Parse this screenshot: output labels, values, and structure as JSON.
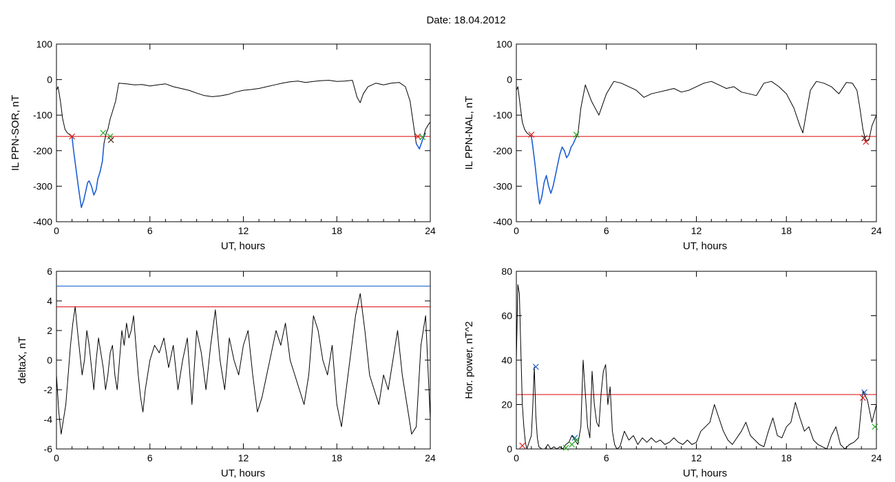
{
  "figure": {
    "title": "Date:  18.04.2012"
  },
  "colors": {
    "trace": "#000000",
    "threshold": "#dd0000",
    "upper": "#1060cc",
    "highlight": "#1c5fd6",
    "mark_red": "#dd2020",
    "mark_green": "#22aa22",
    "mark_blue": "#2060cc",
    "mark_dark": "#552222"
  },
  "chart_data": [
    {
      "id": "p1",
      "type": "line",
      "xlabel": "UT, hours",
      "ylabel": "IL PPN-SOR, nT",
      "xlim": [
        0,
        24
      ],
      "ylim": [
        -400,
        100
      ],
      "xticks": [
        0,
        6,
        12,
        18,
        24
      ],
      "yticks": [
        -400,
        -300,
        -200,
        -100,
        0,
        100
      ],
      "grid": false,
      "series": [
        {
          "x": [
            0,
            0.1,
            0.25,
            0.4,
            0.55,
            0.7,
            0.85,
            1.0,
            1.1,
            1.25,
            1.4,
            1.5,
            1.6,
            1.75,
            1.9,
            2.0,
            2.1,
            2.25,
            2.4,
            2.55,
            2.65,
            2.8,
            2.95,
            3.05,
            3.2,
            3.3,
            3.45,
            3.6,
            3.8,
            4.0,
            4.5,
            5.0,
            5.5,
            6.0,
            6.5,
            7.0,
            7.5,
            8.0,
            8.5,
            9.0,
            9.5,
            10.0,
            10.5,
            11.0,
            11.5,
            12.0,
            12.5,
            13.0,
            13.5,
            14.0,
            14.5,
            15.0,
            15.5,
            16.0,
            16.5,
            17.0,
            17.5,
            18.0,
            18.5,
            19.0,
            19.3,
            19.5,
            19.7,
            20.0,
            20.5,
            21.0,
            21.5,
            22.0,
            22.4,
            22.7,
            22.9,
            23.1,
            23.3,
            23.5,
            23.7,
            23.9,
            24.0
          ],
          "y": [
            -30,
            -20,
            -60,
            -110,
            -140,
            -150,
            -155,
            -160,
            -200,
            -250,
            -300,
            -330,
            -360,
            -340,
            -310,
            -290,
            -285,
            -300,
            -325,
            -310,
            -280,
            -260,
            -230,
            -180,
            -150,
            -140,
            -110,
            -90,
            -60,
            -10,
            -12,
            -15,
            -14,
            -18,
            -15,
            -12,
            -20,
            -25,
            -30,
            -38,
            -45,
            -48,
            -46,
            -42,
            -35,
            -30,
            -28,
            -25,
            -20,
            -15,
            -10,
            -6,
            -4,
            -8,
            -5,
            -3,
            -2,
            -5,
            -4,
            -2,
            -50,
            -65,
            -40,
            -20,
            -10,
            -15,
            -10,
            -8,
            -20,
            -60,
            -120,
            -180,
            -195,
            -170,
            -140,
            -125,
            -120
          ]
        },
        {
          "x": [
            1.0,
            1.1,
            1.25,
            1.4,
            1.5,
            1.6,
            1.75,
            1.9,
            2.0,
            2.1,
            2.25,
            2.4,
            2.55,
            2.65,
            2.8,
            2.95,
            3.05
          ],
          "y": [
            -160,
            -200,
            -250,
            -300,
            -330,
            -360,
            -340,
            -310,
            -290,
            -285,
            -300,
            -325,
            -310,
            -280,
            -260,
            -230,
            -180
          ]
        },
        {
          "x": [
            23.1,
            23.3,
            23.5,
            23.7
          ],
          "y": [
            -180,
            -195,
            -170,
            -150
          ]
        }
      ],
      "threshold": {
        "value": -160
      },
      "markers": [
        {
          "x": 1.0,
          "y": -160,
          "color": "red"
        },
        {
          "x": 3.0,
          "y": -150,
          "color": "green"
        },
        {
          "x": 3.45,
          "y": -160,
          "color": "green"
        },
        {
          "x": 3.5,
          "y": -170,
          "color": "dark"
        },
        {
          "x": 23.2,
          "y": -160,
          "color": "red"
        },
        {
          "x": 23.5,
          "y": -162,
          "color": "green"
        }
      ]
    },
    {
      "id": "p2",
      "type": "line",
      "xlabel": "UT, hours",
      "ylabel": "IL PPN-NAL, nT",
      "xlim": [
        0,
        24
      ],
      "ylim": [
        -400,
        100
      ],
      "xticks": [
        0,
        6,
        12,
        18,
        24
      ],
      "yticks": [
        -400,
        -300,
        -200,
        -100,
        0,
        100
      ],
      "grid": false,
      "series": [
        {
          "x": [
            0,
            0.1,
            0.25,
            0.4,
            0.55,
            0.7,
            0.85,
            1.0,
            1.1,
            1.25,
            1.4,
            1.55,
            1.7,
            1.85,
            2.0,
            2.15,
            2.3,
            2.45,
            2.6,
            2.75,
            2.9,
            3.05,
            3.2,
            3.35,
            3.5,
            3.65,
            3.8,
            3.95,
            4.1,
            4.3,
            4.6,
            5.0,
            5.5,
            6.0,
            6.5,
            7.0,
            7.5,
            8.0,
            8.5,
            9.0,
            9.5,
            10.0,
            10.5,
            11.0,
            11.5,
            12.0,
            12.5,
            13.0,
            13.5,
            14.0,
            14.5,
            15.0,
            15.5,
            16.0,
            16.5,
            17.0,
            17.5,
            18.0,
            18.5,
            18.9,
            19.1,
            19.3,
            19.6,
            20.0,
            20.5,
            21.0,
            21.5,
            22.0,
            22.4,
            22.7,
            22.9,
            23.1,
            23.3,
            23.5,
            23.7,
            23.9,
            24.0
          ],
          "y": [
            -30,
            -20,
            -70,
            -120,
            -140,
            -150,
            -155,
            -160,
            -190,
            -240,
            -300,
            -350,
            -330,
            -290,
            -270,
            -300,
            -320,
            -300,
            -270,
            -240,
            -210,
            -190,
            -200,
            -220,
            -210,
            -190,
            -180,
            -165,
            -155,
            -80,
            -15,
            -60,
            -100,
            -40,
            -5,
            -10,
            -20,
            -30,
            -50,
            -40,
            -35,
            -30,
            -25,
            -35,
            -30,
            -20,
            -10,
            -5,
            -15,
            -25,
            -20,
            -35,
            -40,
            -45,
            -10,
            -5,
            -20,
            -40,
            -80,
            -130,
            -150,
            -100,
            -30,
            -5,
            -10,
            -20,
            -40,
            -8,
            -10,
            -30,
            -80,
            -140,
            -175,
            -170,
            -130,
            -110,
            -100
          ]
        },
        {
          "x": [
            1.0,
            1.1,
            1.25,
            1.4,
            1.55,
            1.7,
            1.85,
            2.0,
            2.15,
            2.3,
            2.45,
            2.6,
            2.75,
            2.9,
            3.05,
            3.2,
            3.35,
            3.5,
            3.65,
            3.8,
            3.95
          ],
          "y": [
            -160,
            -190,
            -240,
            -300,
            -350,
            -330,
            -290,
            -270,
            -300,
            -320,
            -300,
            -270,
            -240,
            -210,
            -190,
            -200,
            -220,
            -210,
            -190,
            -180,
            -165
          ]
        }
      ],
      "threshold": {
        "value": -160
      },
      "markers": [
        {
          "x": 1.0,
          "y": -155,
          "color": "red"
        },
        {
          "x": 4.0,
          "y": -155,
          "color": "green"
        },
        {
          "x": 23.2,
          "y": -165,
          "color": "dark"
        },
        {
          "x": 23.3,
          "y": -175,
          "color": "red"
        }
      ]
    },
    {
      "id": "p3",
      "type": "line",
      "xlabel": "UT, hours",
      "ylabel": "deltaX, nT",
      "xlim": [
        0,
        24
      ],
      "ylim": [
        -6,
        6
      ],
      "xticks": [
        0,
        6,
        12,
        18,
        24
      ],
      "yticks": [
        -6,
        -4,
        -2,
        0,
        2,
        4,
        6
      ],
      "grid": false,
      "series": [
        {
          "x": [
            0,
            0.15,
            0.3,
            0.45,
            0.6,
            0.75,
            0.9,
            1.05,
            1.2,
            1.35,
            1.5,
            1.65,
            1.8,
            1.95,
            2.1,
            2.25,
            2.4,
            2.55,
            2.7,
            2.85,
            3.0,
            3.15,
            3.3,
            3.45,
            3.6,
            3.75,
            3.9,
            4.05,
            4.2,
            4.35,
            4.5,
            4.65,
            4.8,
            4.95,
            5.1,
            5.25,
            5.4,
            5.55,
            5.7,
            5.85,
            6.0,
            6.3,
            6.6,
            6.9,
            7.2,
            7.5,
            7.8,
            8.1,
            8.4,
            8.7,
            9.0,
            9.3,
            9.6,
            9.9,
            10.2,
            10.5,
            10.8,
            11.1,
            11.4,
            11.7,
            12.0,
            12.3,
            12.6,
            12.9,
            13.2,
            13.5,
            13.8,
            14.1,
            14.4,
            14.7,
            15.0,
            15.3,
            15.6,
            15.9,
            16.2,
            16.5,
            16.8,
            17.1,
            17.4,
            17.7,
            18.0,
            18.3,
            18.6,
            18.9,
            19.2,
            19.5,
            19.8,
            20.1,
            20.4,
            20.7,
            21.0,
            21.3,
            21.6,
            21.9,
            22.2,
            22.5,
            22.8,
            23.1,
            23.4,
            23.7,
            24.0
          ],
          "y": [
            -1,
            -3.5,
            -5,
            -4,
            -3,
            -1,
            1,
            2.5,
            3.6,
            2,
            0.5,
            -1,
            0,
            2,
            1,
            -0.5,
            -2,
            0,
            1.5,
            0.5,
            -0.5,
            -2,
            -1,
            0.5,
            1,
            -1,
            -2,
            0,
            2,
            1,
            2.5,
            1.5,
            2,
            3,
            1,
            -1,
            -2.5,
            -3.5,
            -2,
            -1,
            0,
            1,
            0.5,
            1.5,
            -0.5,
            1,
            -2,
            0,
            1.5,
            -3,
            2,
            0.5,
            -2,
            1,
            3.4,
            0,
            -2,
            1.5,
            0,
            -1,
            1,
            2,
            -1,
            -3.5,
            -2.5,
            -1,
            0.5,
            2,
            1,
            2.5,
            0,
            -1,
            -2,
            -3,
            -1,
            3,
            2,
            0,
            -1,
            1,
            -3,
            -4.5,
            -2,
            0.5,
            3,
            4.5,
            2,
            -1,
            -2,
            -3,
            -1,
            -2,
            0,
            2,
            -1,
            -3,
            -5,
            -4.5,
            1,
            3,
            -4
          ]
        }
      ],
      "threshold": {
        "value": 3.6
      },
      "upper_line": {
        "value": 5
      },
      "markers": []
    },
    {
      "id": "p4",
      "type": "line",
      "xlabel": "UT, hours",
      "ylabel": "Hor. power, nT^2",
      "xlim": [
        0,
        24
      ],
      "ylim": [
        0,
        80
      ],
      "xticks": [
        0,
        6,
        12,
        18,
        24
      ],
      "yticks": [
        0,
        20,
        40,
        60,
        80
      ],
      "grid": false,
      "series": [
        {
          "x": [
            0,
            0.1,
            0.2,
            0.3,
            0.4,
            0.5,
            0.6,
            0.7,
            0.8,
            0.9,
            1.0,
            1.1,
            1.2,
            1.3,
            1.4,
            1.5,
            1.7,
            1.9,
            2.1,
            2.3,
            2.5,
            2.7,
            2.9,
            3.1,
            3.3,
            3.5,
            3.7,
            3.9,
            4.1,
            4.3,
            4.45,
            4.6,
            4.75,
            4.9,
            5.05,
            5.2,
            5.35,
            5.5,
            5.65,
            5.8,
            5.95,
            6.1,
            6.25,
            6.4,
            6.55,
            6.7,
            6.9,
            7.2,
            7.5,
            7.8,
            8.1,
            8.4,
            8.7,
            9.0,
            9.3,
            9.6,
            9.9,
            10.2,
            10.5,
            10.8,
            11.1,
            11.4,
            11.7,
            12.0,
            12.3,
            12.6,
            12.9,
            13.2,
            13.5,
            13.8,
            14.1,
            14.4,
            14.7,
            15.0,
            15.3,
            15.6,
            15.9,
            16.2,
            16.5,
            16.8,
            17.1,
            17.4,
            17.7,
            18.0,
            18.3,
            18.6,
            18.9,
            19.2,
            19.5,
            19.8,
            20.1,
            20.4,
            20.7,
            21.0,
            21.3,
            21.6,
            21.9,
            22.2,
            22.5,
            22.8,
            23.1,
            23.4,
            23.7,
            24.0
          ],
          "y": [
            40,
            74,
            70,
            45,
            20,
            10,
            3,
            0,
            2,
            4,
            6,
            20,
            37,
            15,
            5,
            1,
            0,
            0,
            2,
            0,
            1,
            0,
            1,
            0,
            2,
            3,
            6,
            4,
            2,
            10,
            40,
            25,
            10,
            5,
            35,
            20,
            12,
            10,
            25,
            35,
            38,
            20,
            28,
            8,
            2,
            0,
            1,
            8,
            4,
            6,
            2,
            5,
            3,
            5,
            3,
            4,
            2,
            3,
            5,
            3,
            2,
            4,
            2,
            3,
            8,
            10,
            12,
            20,
            14,
            8,
            4,
            2,
            5,
            8,
            12,
            6,
            4,
            2,
            1,
            8,
            14,
            6,
            5,
            10,
            12,
            21,
            14,
            8,
            10,
            4,
            2,
            1,
            0,
            6,
            10,
            2,
            0,
            2,
            3,
            5,
            26,
            22,
            12,
            20
          ]
        }
      ],
      "threshold": {
        "value": 24.5
      },
      "markers": [
        {
          "x": 0.4,
          "y": 1.5,
          "color": "red"
        },
        {
          "x": 1.3,
          "y": 37,
          "color": "blue"
        },
        {
          "x": 3.3,
          "y": 0.5,
          "color": "green"
        },
        {
          "x": 3.7,
          "y": 2,
          "color": "green"
        },
        {
          "x": 3.9,
          "y": 5,
          "color": "blue"
        },
        {
          "x": 4.0,
          "y": 4,
          "color": "green"
        },
        {
          "x": 23.1,
          "y": 23,
          "color": "red"
        },
        {
          "x": 23.2,
          "y": 25.5,
          "color": "blue"
        },
        {
          "x": 23.9,
          "y": 10,
          "color": "green"
        }
      ]
    }
  ]
}
